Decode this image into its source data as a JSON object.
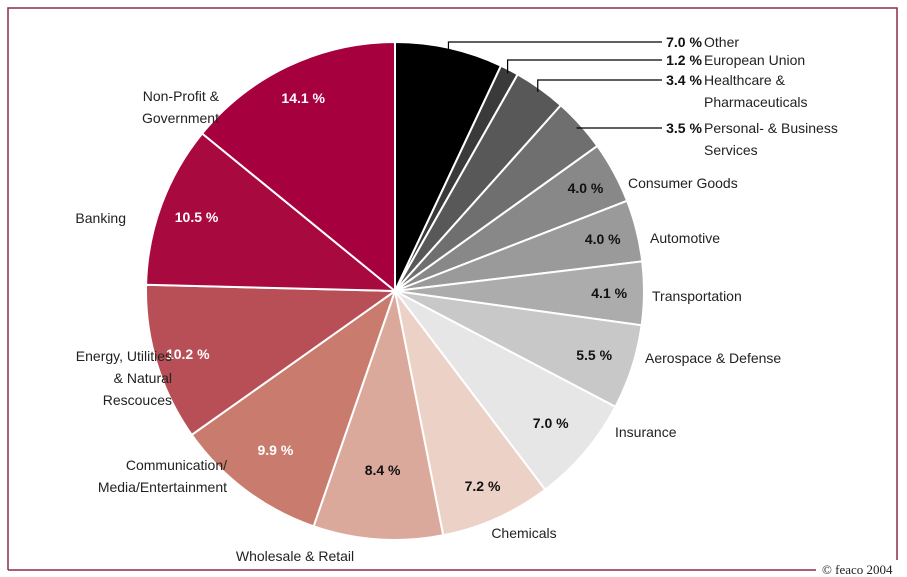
{
  "chart_data": {
    "type": "pie",
    "categories": [
      "Other",
      "European Union",
      "Healthcare &\nPharmaceuticals",
      "Personal- & Business\nServices",
      "Consumer Goods",
      "Automotive",
      "Transportation",
      "Aerospace & Defense",
      "Insurance",
      "Chemicals",
      "Wholesale & Retail",
      "Communication/\nMedia/Entertainment",
      "Energy, Utilities\n& Natural\nRescouces",
      "Banking",
      "Non-Profit &\nGovernment"
    ],
    "values": [
      7.0,
      1.2,
      3.4,
      3.5,
      4.0,
      4.0,
      4.1,
      5.5,
      7.0,
      7.2,
      8.4,
      9.9,
      10.2,
      10.5,
      14.1
    ],
    "value_labels": [
      "7.0 %",
      "1.2 %",
      "3.4 %",
      "3.5 %",
      "4.0 %",
      "4.0 %",
      "4.1 %",
      "5.5 %",
      "7.0 %",
      "7.2 %",
      "8.4 %",
      "9.9 %",
      "10.2 %",
      "10.5 %",
      "14.1 %"
    ],
    "colors": [
      "#000000",
      "#3a3a3a",
      "#585858",
      "#6f6f6f",
      "#888888",
      "#9a9a9a",
      "#acacac",
      "#c8c8c8",
      "#e6e6e6",
      "#ecd1c7",
      "#dba99b",
      "#c97c6e",
      "#b94f56",
      "#a8093e",
      "#a6003e"
    ],
    "credit": "© feaco 2004"
  }
}
